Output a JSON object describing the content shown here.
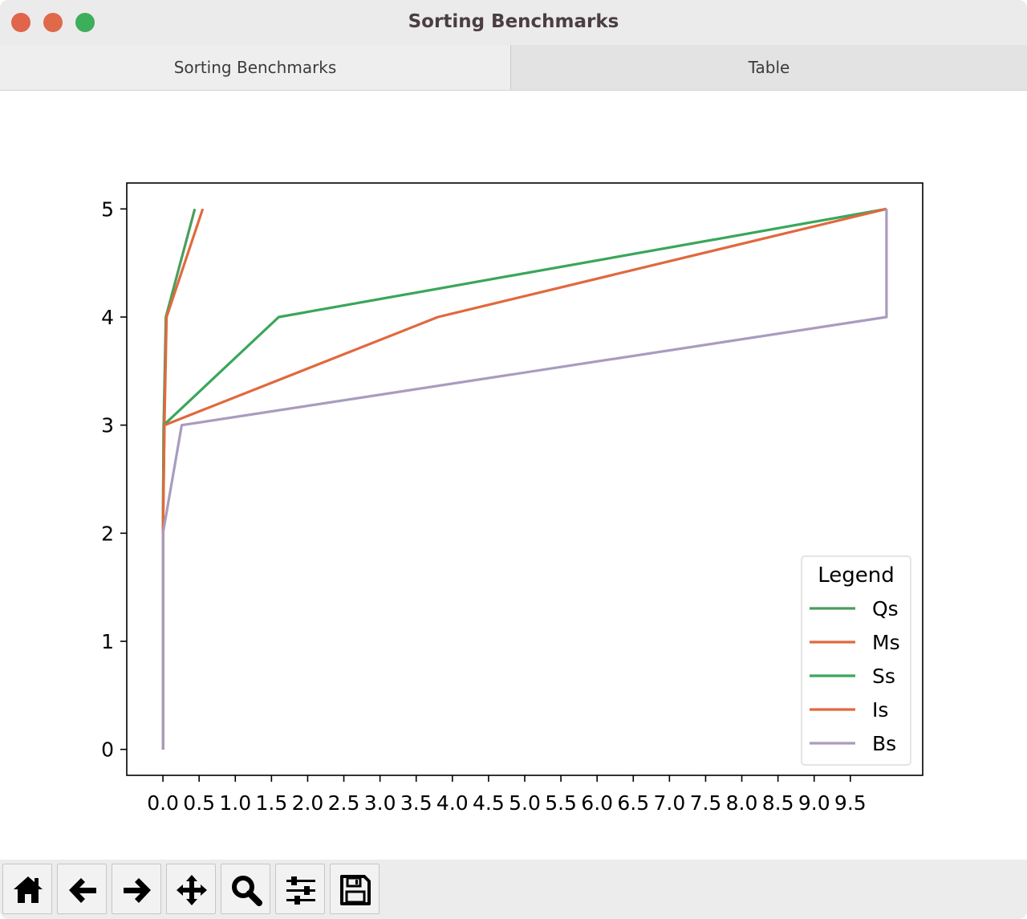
{
  "window": {
    "title": "Sorting Benchmarks"
  },
  "tabs": [
    {
      "label": "Sorting Benchmarks",
      "active": true
    },
    {
      "label": "Table",
      "active": false
    }
  ],
  "toolbar": {
    "buttons": [
      {
        "icon": "home-icon"
      },
      {
        "icon": "arrow-left-icon"
      },
      {
        "icon": "arrow-right-icon"
      },
      {
        "icon": "move-icon"
      },
      {
        "icon": "zoom-icon"
      },
      {
        "icon": "sliders-icon"
      },
      {
        "icon": "save-icon"
      }
    ]
  },
  "chart_data": {
    "type": "line",
    "title": "",
    "xlabel": "",
    "ylabel": "",
    "xlim": [
      -0.5,
      10.5
    ],
    "ylim": [
      -0.24,
      5.24
    ],
    "xticks": [
      0,
      0.5,
      1,
      1.5,
      2,
      2.5,
      3,
      3.5,
      4,
      4.5,
      5,
      5.5,
      6,
      6.5,
      7,
      7.5,
      8,
      8.5,
      9,
      9.5
    ],
    "xtick_labels": [
      "0.0",
      "0.5",
      "1.0",
      "1.5",
      "2.0",
      "2.5",
      "3.0",
      "3.5",
      "4.0",
      "4.5",
      "5.0",
      "5.5",
      "6.0",
      "6.5",
      "7.0",
      "7.5",
      "8.0",
      "8.5",
      "9.0",
      "9.5"
    ],
    "yticks": [
      0,
      1,
      2,
      3,
      4,
      5
    ],
    "ytick_labels": [
      "0",
      "1",
      "2",
      "3",
      "4",
      "5"
    ],
    "grid": false,
    "legend": {
      "title": "Legend",
      "placement": "lower-right"
    },
    "series": [
      {
        "name": "Qs",
        "color": "#4a9e5c",
        "points": [
          [
            0.0,
            0
          ],
          [
            0.0,
            1
          ],
          [
            0.0,
            2
          ],
          [
            0.01,
            3
          ],
          [
            0.04,
            4
          ],
          [
            0.44,
            5
          ]
        ]
      },
      {
        "name": "Ms",
        "color": "#e06a3e",
        "points": [
          [
            0.0,
            0
          ],
          [
            0.0,
            1
          ],
          [
            0.0,
            2
          ],
          [
            0.02,
            3
          ],
          [
            0.05,
            4
          ],
          [
            0.55,
            5
          ]
        ]
      },
      {
        "name": "Ss",
        "color": "#3aa65a",
        "points": [
          [
            0.0,
            0
          ],
          [
            0.0,
            1
          ],
          [
            0.0,
            2
          ],
          [
            0.01,
            3
          ],
          [
            1.6,
            4
          ],
          [
            10.0,
            5
          ]
        ]
      },
      {
        "name": "Is",
        "color": "#e0693e",
        "points": [
          [
            0.0,
            0
          ],
          [
            0.0,
            1
          ],
          [
            0.0,
            2
          ],
          [
            0.02,
            3
          ],
          [
            3.8,
            4
          ],
          [
            10.0,
            5
          ]
        ]
      },
      {
        "name": "Bs",
        "color": "#a99cbd",
        "points": [
          [
            0.0,
            0
          ],
          [
            0.0,
            1
          ],
          [
            0.0,
            2
          ],
          [
            0.26,
            3
          ],
          [
            10.0,
            4
          ],
          [
            10.0,
            5
          ]
        ]
      }
    ]
  }
}
